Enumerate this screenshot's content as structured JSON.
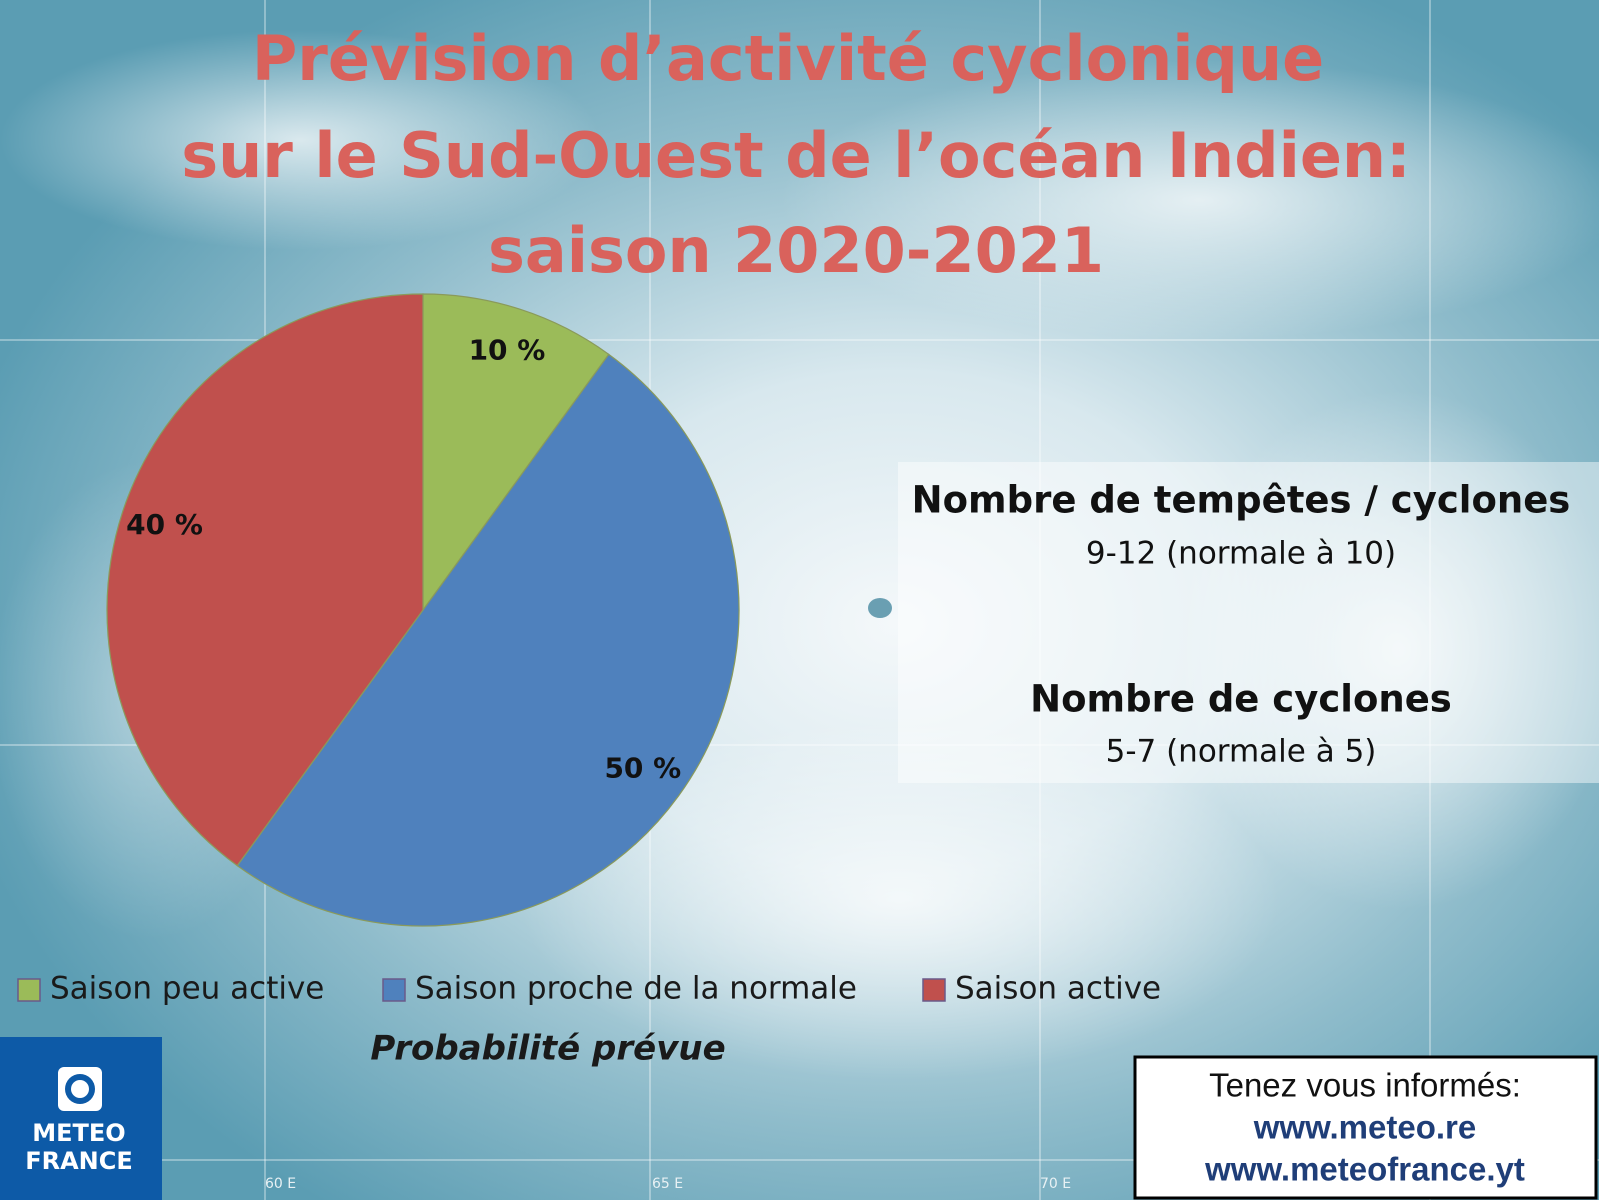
{
  "chart_data": {
    "type": "pie",
    "title": [
      "Prévision d’activité cyclonique",
      "sur le Sud-Ouest de l’océan Indien:",
      "saison 2020-2021"
    ],
    "title_color": "#d9625c",
    "categories": [
      "Saison peu active",
      "Saison proche de la normale",
      "Saison active"
    ],
    "values": [
      10,
      50,
      40
    ],
    "value_labels": [
      "10 %",
      "50 %",
      "40 %"
    ],
    "colors": [
      "#9bbb59",
      "#4f81bd",
      "#c0504d"
    ],
    "legend_title": "Probabilité prévue",
    "legend": "bottom"
  },
  "info_box": {
    "storms_heading": "Nombre de tempêtes / cyclones",
    "storms_value": "9-12 (normale à 10)",
    "cyclones_heading": "Nombre de cyclones",
    "cyclones_value": "5-7 (normale à 5)"
  },
  "footer": {
    "text": "Tenez vous informés:",
    "links": [
      "www.meteo.re",
      "www.meteofrance.yt"
    ]
  },
  "logo": [
    "METEO",
    "FRANCE"
  ],
  "map_labels": [
    "60 E",
    "65 E",
    "70 E"
  ]
}
